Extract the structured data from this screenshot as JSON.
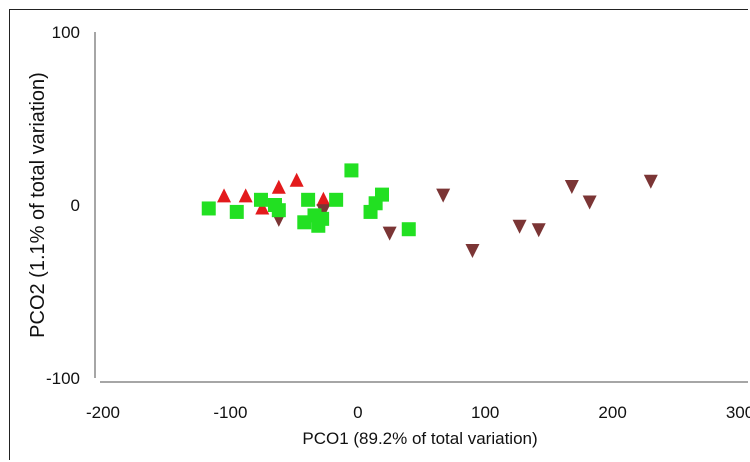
{
  "chart_data": {
    "type": "scatter",
    "title": "",
    "xlabel": "PCO1 (89.2% of total variation)",
    "ylabel": "PCO2 (1.1% of total variation)",
    "xlim": [
      -200,
      300
    ],
    "ylim": [
      -100,
      100
    ],
    "x_ticks": [
      "-200",
      "-100",
      "0",
      "100",
      "200",
      "300"
    ],
    "y_ticks": [
      "100",
      "0",
      "-100"
    ],
    "grid": false,
    "legend": "none",
    "series": [
      {
        "marker": "triangle-up",
        "color": "#e31a1c",
        "points": [
          {
            "x": -105,
            "y": 5
          },
          {
            "x": -88,
            "y": 5
          },
          {
            "x": -75,
            "y": -2
          },
          {
            "x": -62,
            "y": 10
          },
          {
            "x": -48,
            "y": 14
          },
          {
            "x": -27,
            "y": 3
          }
        ]
      },
      {
        "marker": "triangle-down",
        "color": "#7b3535",
        "points": [
          {
            "x": -62,
            "y": -8
          },
          {
            "x": -27,
            "y": -3
          },
          {
            "x": 25,
            "y": -16
          },
          {
            "x": 67,
            "y": 6
          },
          {
            "x": 90,
            "y": -26
          },
          {
            "x": 127,
            "y": -12
          },
          {
            "x": 142,
            "y": -14
          },
          {
            "x": 168,
            "y": 11
          },
          {
            "x": 182,
            "y": 2
          },
          {
            "x": 230,
            "y": 14
          }
        ]
      },
      {
        "marker": "square",
        "color": "#22e022",
        "points": [
          {
            "x": -117,
            "y": -2
          },
          {
            "x": -95,
            "y": -4
          },
          {
            "x": -76,
            "y": 3
          },
          {
            "x": -65,
            "y": 0
          },
          {
            "x": -62,
            "y": -3
          },
          {
            "x": -42,
            "y": -10
          },
          {
            "x": -39,
            "y": 3
          },
          {
            "x": -34,
            "y": -6
          },
          {
            "x": -31,
            "y": -12
          },
          {
            "x": -28,
            "y": -8
          },
          {
            "x": -17,
            "y": 3
          },
          {
            "x": -5,
            "y": 20
          },
          {
            "x": 10,
            "y": -4
          },
          {
            "x": 14,
            "y": 1
          },
          {
            "x": 19,
            "y": 6
          },
          {
            "x": 40,
            "y": -14
          }
        ]
      }
    ]
  }
}
